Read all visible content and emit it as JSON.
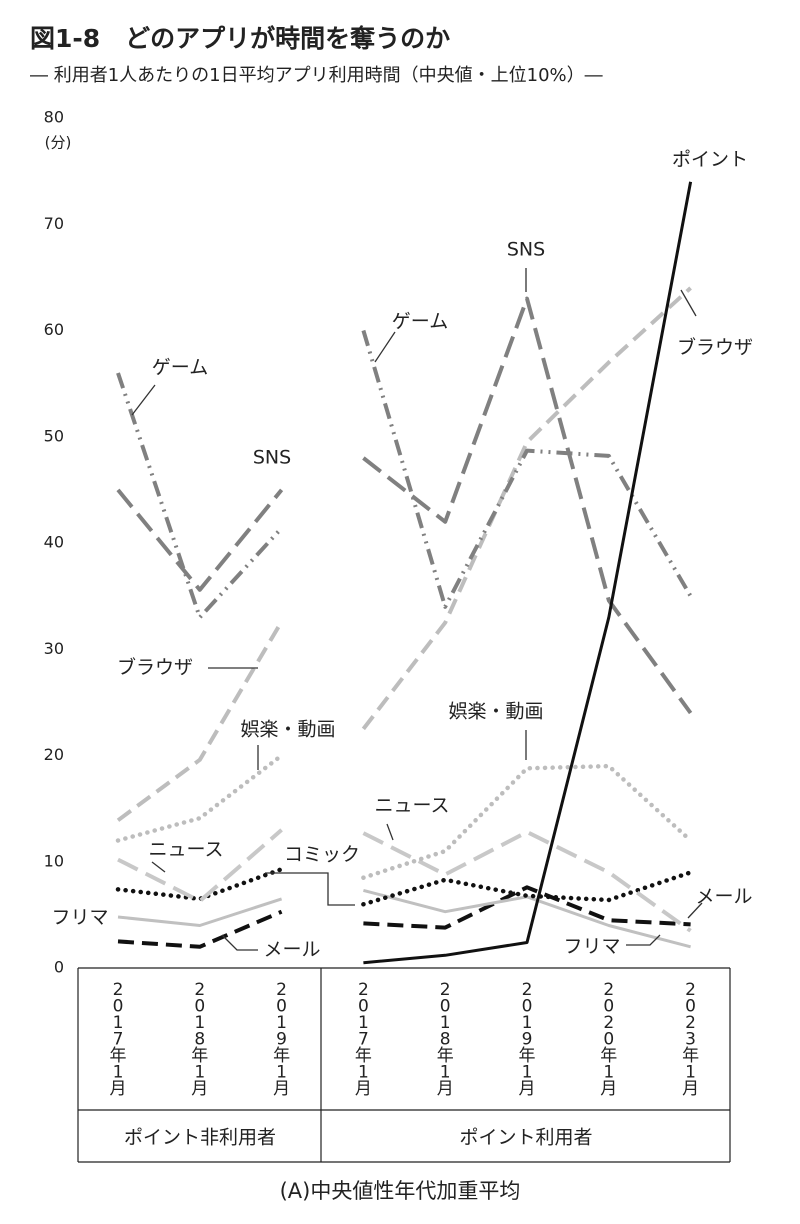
{
  "chart_data": {
    "type": "line",
    "title": "図1-8　どのアプリが時間を奪うのか",
    "subtitle": "― 利用者1人あたりの1日平均アプリ利用時間（中央値・上位10%）―",
    "y_label": "(分)",
    "caption": "(A)中央値性年代加重平均",
    "groups": [
      "ポイント非利用者",
      "ポイント利用者"
    ],
    "categories": [
      "2017年1月",
      "2018年1月",
      "2019年1月",
      null,
      "2017年1月",
      "2018年1月",
      "2019年1月",
      "2020年1月",
      "2023年1月"
    ],
    "ylim": [
      0,
      80
    ],
    "yticks": [
      0,
      10,
      20,
      30,
      40,
      50,
      60,
      70,
      80
    ],
    "grid": false,
    "series": [
      {
        "name": "ポイント",
        "color": "#111111",
        "style": "solid",
        "values": [
          null,
          null,
          null,
          null,
          0.5,
          1.2,
          2.4,
          33,
          74
        ]
      },
      {
        "name": "ゲーム",
        "color": "#808080",
        "style": "dashdotdot",
        "values": [
          56,
          33,
          41.4,
          null,
          60,
          34,
          48.7,
          48.2,
          35
        ]
      },
      {
        "name": "SNS",
        "color": "#808080",
        "style": "longdash",
        "values": [
          45,
          35.6,
          45,
          null,
          48,
          42,
          63,
          34.6,
          24
        ]
      },
      {
        "name": "ブラウザ",
        "color": "#bdbdbd",
        "style": "dash",
        "values": [
          13.9,
          19.6,
          32.6,
          null,
          22.5,
          32.5,
          49.5,
          57,
          64
        ]
      },
      {
        "name": "娯楽・動画",
        "color": "#bdbdbd",
        "style": "dot",
        "values": [
          12,
          14.1,
          20,
          null,
          8.5,
          11,
          18.8,
          19,
          12
        ]
      },
      {
        "name": "ニュース",
        "color": "#c8c8c8",
        "style": "longdash",
        "values": [
          10.2,
          6.3,
          13,
          null,
          12.7,
          8.8,
          12.8,
          9,
          3.5
        ]
      },
      {
        "name": "コミック",
        "color": "#111111",
        "style": "dot",
        "values": [
          7.4,
          6.5,
          9.3,
          null,
          6,
          8.3,
          6.8,
          6.4,
          9
        ]
      },
      {
        "name": "フリマ",
        "color": "#c0c0c0",
        "style": "solid",
        "values": [
          4.8,
          4,
          6.5,
          null,
          7.3,
          5.3,
          6.7,
          4,
          2
        ]
      },
      {
        "name": "メール",
        "color": "#111111",
        "style": "dash",
        "values": [
          2.5,
          2,
          5.3,
          null,
          4.2,
          3.8,
          7.6,
          4.5,
          4.1
        ]
      }
    ]
  }
}
